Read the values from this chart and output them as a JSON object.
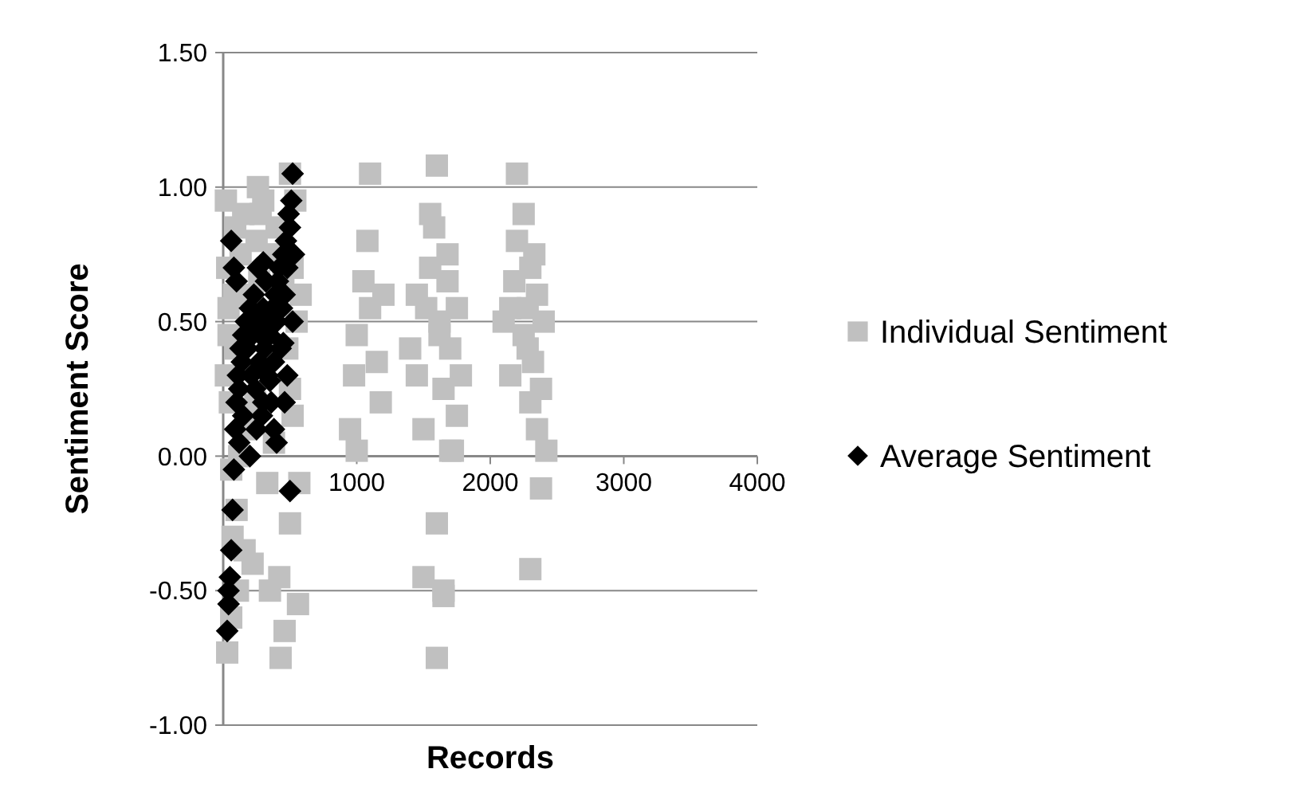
{
  "chart_data": {
    "type": "scatter",
    "xlabel": "Records",
    "ylabel": "Sentiment Score",
    "xlim": [
      0,
      4000
    ],
    "xticks": [
      {
        "value": 0,
        "label": null
      },
      1000,
      2000,
      3000,
      4000
    ],
    "ylim": [
      -1,
      1.5
    ],
    "yticks": [
      {
        "value": -1,
        "label": "-1.00"
      },
      {
        "value": -0.5,
        "label": "-0.50"
      },
      {
        "value": 0,
        "label": "0.00"
      },
      {
        "value": 0.5,
        "label": "0.50"
      },
      {
        "value": 1,
        "label": "1.00"
      },
      {
        "value": 1.5,
        "label": "1.50"
      }
    ],
    "grid": "y",
    "legend": "right",
    "series": [
      {
        "name": "Individual Sentiment",
        "color": "#c0c0c0",
        "marker": "square",
        "x": [
          20,
          30,
          40,
          50,
          60,
          70,
          80,
          90,
          110,
          130,
          150,
          170,
          220,
          250,
          270,
          300,
          380,
          400,
          420,
          450,
          480,
          500,
          520,
          550,
          570,
          30,
          60,
          90,
          120,
          160,
          200,
          240,
          280,
          330,
          370,
          460,
          500,
          540,
          580,
          40,
          100,
          260,
          350,
          430,
          520,
          560,
          20,
          500,
          950,
          980,
          1000,
          1050,
          1080,
          1100,
          1150,
          1180,
          1000,
          1100,
          1200,
          1400,
          1450,
          1500,
          1520,
          1550,
          1580,
          1600,
          1620,
          1650,
          1680,
          1700,
          1720,
          1750,
          1780,
          1500,
          1600,
          1650,
          1700,
          1550,
          1620,
          1680,
          1450,
          1600,
          1650,
          1750,
          2100,
          2150,
          2180,
          2200,
          2250,
          2280,
          2300,
          2320,
          2350,
          2380,
          2400,
          2420,
          2200,
          2300,
          2350,
          2250,
          2280,
          2330,
          2150,
          2380,
          2300
        ],
        "values": [
          0.95,
          0.7,
          0.45,
          0.2,
          -0.05,
          -0.3,
          0.6,
          0.85,
          -0.5,
          0.75,
          0.9,
          0.1,
          -0.4,
          0.8,
          0.65,
          0.95,
          0.05,
          0.85,
          -0.45,
          0.65,
          0.4,
          1.05,
          0.15,
          0.5,
          -0.1,
          -0.73,
          -0.6,
          0.4,
          0.0,
          -0.35,
          0.6,
          0.2,
          0.9,
          -0.1,
          0.75,
          -0.65,
          0.25,
          0.95,
          0.6,
          0.55,
          -0.2,
          1.0,
          -0.5,
          -0.75,
          0.7,
          -0.55,
          0.3,
          -0.25,
          0.1,
          0.3,
          0.45,
          0.65,
          0.8,
          0.55,
          0.35,
          0.2,
          0.02,
          1.05,
          0.6,
          0.4,
          0.3,
          0.1,
          0.55,
          0.7,
          0.85,
          1.08,
          0.5,
          0.25,
          0.65,
          0.4,
          0.02,
          0.55,
          0.3,
          -0.45,
          -0.25,
          -0.5,
          0.02,
          0.9,
          0.45,
          0.75,
          0.6,
          -0.75,
          -0.52,
          0.15,
          0.5,
          0.3,
          0.65,
          0.8,
          0.45,
          0.55,
          0.7,
          0.35,
          0.6,
          0.25,
          0.5,
          0.02,
          1.05,
          0.2,
          0.1,
          0.9,
          0.4,
          0.75,
          0.55,
          -0.12,
          -0.42
        ]
      },
      {
        "name": "Average Sentiment",
        "color": "#000000",
        "marker": "diamond",
        "x": [
          30,
          40,
          50,
          60,
          70,
          80,
          90,
          100,
          110,
          120,
          130,
          140,
          150,
          170,
          180,
          200,
          210,
          220,
          230,
          240,
          250,
          260,
          270,
          280,
          290,
          300,
          310,
          320,
          330,
          340,
          350,
          360,
          370,
          380,
          390,
          400,
          410,
          420,
          430,
          440,
          450,
          460,
          470,
          480,
          490,
          500,
          510,
          520,
          530,
          40,
          60,
          80,
          100,
          120,
          150,
          200,
          250,
          300,
          350,
          400,
          450,
          480,
          500,
          520,
          300,
          380,
          460
        ],
        "values": [
          -0.65,
          -0.55,
          -0.45,
          -0.35,
          -0.2,
          -0.05,
          0.1,
          0.2,
          0.3,
          0.25,
          0.4,
          0.35,
          0.45,
          0.5,
          0.4,
          0.55,
          0.3,
          0.45,
          0.6,
          0.25,
          0.5,
          0.7,
          0.35,
          0.45,
          0.15,
          0.55,
          0.4,
          0.65,
          0.3,
          0.5,
          0.45,
          0.2,
          0.55,
          0.35,
          0.6,
          0.5,
          0.65,
          0.7,
          0.4,
          0.55,
          0.75,
          0.6,
          0.8,
          0.7,
          0.9,
          0.85,
          0.95,
          1.05,
          0.75,
          -0.5,
          0.8,
          0.7,
          0.65,
          0.05,
          0.15,
          0.0,
          0.1,
          0.2,
          0.28,
          0.05,
          0.42,
          0.3,
          -0.13,
          0.5,
          0.72,
          0.1,
          0.2
        ]
      }
    ]
  }
}
